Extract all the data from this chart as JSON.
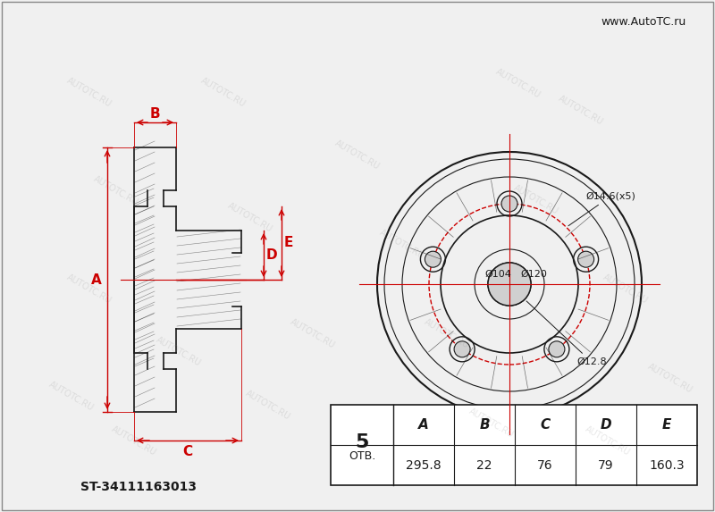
{
  "bg_color": "#f0f0f0",
  "line_color": "#1a1a1a",
  "red_color": "#cc0000",
  "part_number": "ST-34111163013",
  "bolt_count": "5",
  "otv_label": "ОТВ.",
  "dim_A": "295.8",
  "dim_B": "22",
  "dim_C": "76",
  "dim_D": "79",
  "dim_E": "160.3",
  "dia_bolt": "Ø14.6(x5)",
  "dia_pcd": "Ø120",
  "dia_hub": "Ø104",
  "dia_center": "Ø12.8",
  "website": "www.AutoTC.ru",
  "table_cols": [
    "A",
    "B",
    "C",
    "D",
    "E"
  ],
  "table_vals": [
    "295.8",
    "22",
    "76",
    "79",
    "160.3"
  ]
}
